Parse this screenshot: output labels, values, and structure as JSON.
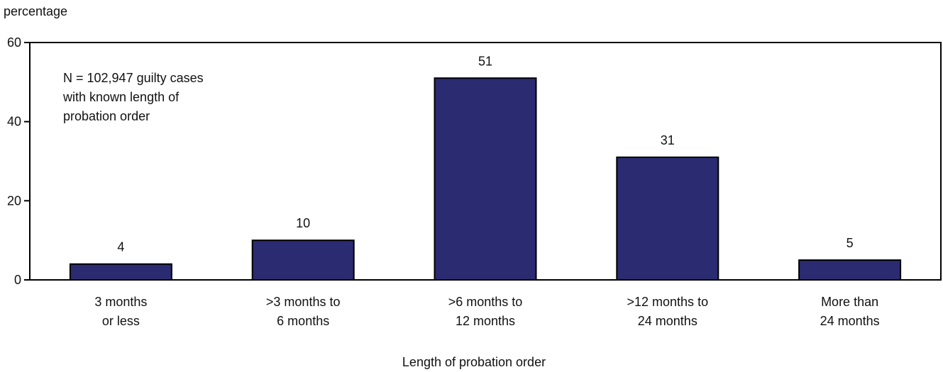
{
  "chart_data": {
    "type": "bar",
    "ylabel": "percentage",
    "xlabel": "Length of probation order",
    "ylim": [
      0,
      60
    ],
    "yticks": [
      0,
      20,
      40,
      60
    ],
    "grid": false,
    "bar_color": "#2b2b72",
    "bar_edge_color": "#000000",
    "categories": [
      [
        "3 months",
        "or less"
      ],
      [
        ">3 months to",
        "6 months"
      ],
      [
        ">6 months to",
        "12 months"
      ],
      [
        ">12 months to",
        "24 months"
      ],
      [
        "More than",
        "24 months"
      ]
    ],
    "values": [
      4,
      10,
      51,
      31,
      5
    ],
    "data_labels": [
      "4",
      "10",
      "51",
      "31",
      "5"
    ],
    "annotation": [
      "N = 102,947 guilty cases",
      "with known length of",
      "probation order"
    ]
  }
}
